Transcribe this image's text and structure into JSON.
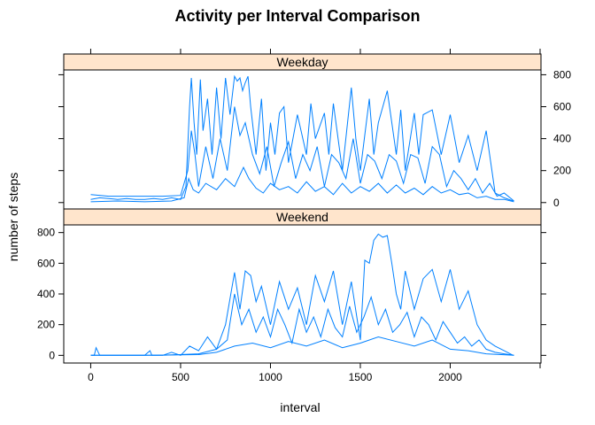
{
  "chart_data": {
    "type": "line",
    "title": "Activity per Interval Comparison",
    "xlabel": "interval",
    "ylabel": "number of steps",
    "xlim": [
      -150,
      2505
    ],
    "x_ticks": [
      "0",
      "500",
      "1000",
      "1500",
      "2000"
    ],
    "grid": false,
    "legend": "none",
    "line_color": "#0080FF",
    "strip_color": "#FFE5CC",
    "panels": [
      {
        "name": "Weekday",
        "ylim": [
          -40,
          830
        ],
        "y_ticks": [
          "0",
          "200",
          "400",
          "600",
          "800"
        ],
        "y_tick_values": [
          0,
          200,
          400,
          600,
          800
        ],
        "y_axis_side": "right",
        "series": [
          {
            "x": [
              0,
              50,
              100,
              150,
              200,
              250,
              300,
              350,
              400,
              450,
              500,
              530,
              550,
              560,
              575,
              590,
              610,
              625,
              650,
              675,
              700,
              725,
              750,
              775,
              800,
              815,
              830,
              845,
              860,
              875,
              890,
              905,
              920,
              950,
              975,
              1000,
              1025,
              1050,
              1075,
              1100,
              1150,
              1200,
              1225,
              1250,
              1300,
              1325,
              1350,
              1400,
              1450,
              1475,
              1500,
              1550,
              1575,
              1600,
              1650,
              1700,
              1725,
              1750,
              1800,
              1825,
              1850,
              1900,
              1950,
              2000,
              2050,
              2100,
              2150,
              2200,
              2250,
              2300,
              2350
            ],
            "values": [
              20,
              30,
              25,
              20,
              25,
              20,
              20,
              25,
              20,
              30,
              20,
              100,
              600,
              780,
              500,
              300,
              770,
              450,
              650,
              300,
              720,
              400,
              780,
              550,
              790,
              760,
              780,
              700,
              750,
              790,
              600,
              450,
              300,
              650,
              200,
              500,
              300,
              560,
              600,
              250,
              550,
              300,
              620,
              400,
              560,
              300,
              620,
              200,
              720,
              400,
              200,
              650,
              300,
              500,
              700,
              300,
              580,
              200,
              560,
              300,
              550,
              580,
              300,
              550,
              250,
              420,
              200,
              450,
              60,
              30,
              10
            ]
          },
          {
            "x": [
              0,
              100,
              200,
              300,
              400,
              500,
              540,
              560,
              580,
              600,
              640,
              680,
              720,
              760,
              800,
              830,
              860,
              900,
              940,
              980,
              1020,
              1060,
              1100,
              1140,
              1180,
              1220,
              1260,
              1300,
              1340,
              1380,
              1420,
              1460,
              1500,
              1540,
              1580,
              1620,
              1660,
              1700,
              1740,
              1780,
              1820,
              1860,
              1900,
              1940,
              1980,
              2020,
              2060,
              2100,
              2140,
              2180,
              2220,
              2260,
              2300,
              2355
            ],
            "values": [
              50,
              40,
              40,
              40,
              40,
              45,
              200,
              450,
              300,
              100,
              350,
              150,
              400,
              200,
              600,
              420,
              500,
              300,
              180,
              350,
              100,
              250,
              380,
              150,
              300,
              200,
              350,
              100,
              300,
              250,
              150,
              400,
              120,
              300,
              260,
              150,
              300,
              260,
              120,
              300,
              280,
              120,
              350,
              300,
              100,
              200,
              150,
              80,
              150,
              60,
              120,
              40,
              60,
              10
            ]
          },
          {
            "x": [
              0,
              150,
              300,
              450,
              520,
              545,
              570,
              600,
              640,
              700,
              750,
              800,
              850,
              880,
              920,
              960,
              1000,
              1050,
              1100,
              1150,
              1200,
              1250,
              1300,
              1350,
              1400,
              1450,
              1500,
              1550,
              1600,
              1650,
              1700,
              1750,
              1800,
              1850,
              1900,
              1950,
              2000,
              2050,
              2100,
              2150,
              2200,
              2250,
              2300,
              2355
            ],
            "values": [
              5,
              10,
              5,
              10,
              30,
              150,
              80,
              60,
              120,
              80,
              150,
              100,
              220,
              150,
              90,
              60,
              120,
              80,
              100,
              60,
              130,
              70,
              100,
              50,
              120,
              60,
              100,
              70,
              120,
              60,
              110,
              60,
              90,
              50,
              100,
              60,
              80,
              50,
              60,
              30,
              40,
              20,
              20,
              5
            ]
          }
        ]
      },
      {
        "name": "Weekend",
        "ylim": [
          -50,
          850
        ],
        "y_ticks": [
          "0",
          "200",
          "400",
          "600",
          "800"
        ],
        "y_tick_values": [
          0,
          200,
          400,
          600,
          800
        ],
        "y_axis_side": "left",
        "series": [
          {
            "x": [
              0,
              20,
              30,
              50,
              100,
              200,
              300,
              330,
              340,
              400,
              450,
              500,
              550,
              600,
              650,
              700,
              750,
              800,
              830,
              860,
              890,
              920,
              950,
              1000,
              1050,
              1100,
              1150,
              1200,
              1250,
              1300,
              1350,
              1400,
              1450,
              1500,
              1525,
              1550,
              1575,
              1600,
              1625,
              1650,
              1675,
              1700,
              1725,
              1750,
              1800,
              1850,
              1900,
              1950,
              2000,
              2050,
              2100,
              2150,
              2200,
              2250,
              2300,
              2350
            ],
            "values": [
              0,
              0,
              50,
              0,
              0,
              0,
              0,
              30,
              0,
              0,
              20,
              0,
              60,
              30,
              120,
              40,
              200,
              540,
              300,
              550,
              520,
              350,
              450,
              200,
              480,
              300,
              440,
              200,
              520,
              350,
              550,
              200,
              480,
              100,
              620,
              600,
              750,
              790,
              770,
              780,
              600,
              400,
              300,
              550,
              300,
              500,
              560,
              350,
              560,
              300,
              420,
              200,
              100,
              60,
              30,
              0
            ]
          },
          {
            "x": [
              0,
              200,
              400,
              600,
              700,
              760,
              800,
              840,
              880,
              920,
              960,
              1000,
              1040,
              1080,
              1120,
              1160,
              1200,
              1240,
              1280,
              1320,
              1360,
              1400,
              1440,
              1480,
              1520,
              1560,
              1600,
              1640,
              1680,
              1720,
              1760,
              1800,
              1840,
              1880,
              1920,
              1960,
              2000,
              2040,
              2080,
              2120,
              2160,
              2200,
              2250,
              2300,
              2355
            ],
            "values": [
              0,
              0,
              0,
              10,
              40,
              100,
              400,
              200,
              300,
              150,
              250,
              120,
              300,
              200,
              80,
              300,
              150,
              250,
              120,
              300,
              180,
              120,
              320,
              150,
              250,
              380,
              200,
              300,
              150,
              200,
              280,
              120,
              250,
              200,
              100,
              220,
              150,
              80,
              120,
              60,
              100,
              40,
              20,
              10,
              0
            ]
          },
          {
            "x": [
              0,
              300,
              600,
              700,
              800,
              900,
              1000,
              1100,
              1200,
              1300,
              1400,
              1500,
              1600,
              1700,
              1800,
              1900,
              2000,
              2100,
              2200,
              2355
            ],
            "values": [
              0,
              0,
              5,
              20,
              60,
              80,
              50,
              90,
              60,
              100,
              50,
              80,
              120,
              90,
              60,
              100,
              40,
              30,
              10,
              0
            ]
          }
        ]
      }
    ]
  }
}
